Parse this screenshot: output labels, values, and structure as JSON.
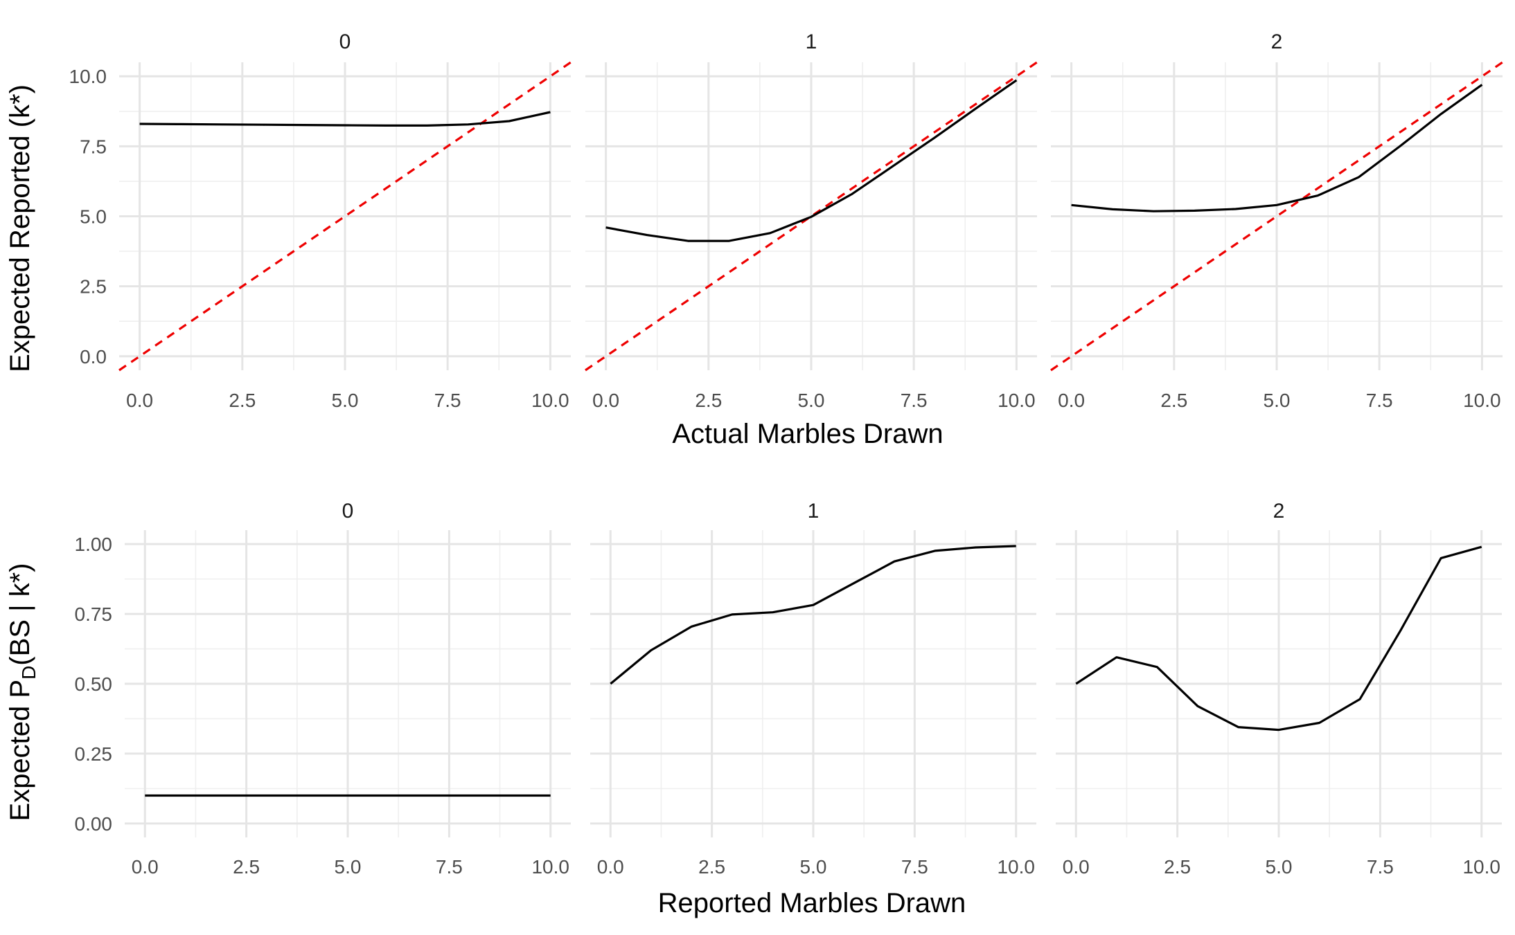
{
  "chart_data": [
    {
      "type": "line",
      "facet_labels": [
        "0",
        "1",
        "2"
      ],
      "xlabel": "Actual Marbles Drawn",
      "ylabel": "Expected Reported (k*)",
      "xlim": [
        -0.5,
        10.5
      ],
      "ylim": [
        -0.5,
        10.5
      ],
      "x_ticks": [
        0,
        2.5,
        5,
        7.5,
        10
      ],
      "x_tick_labels": [
        "0.0",
        "2.5",
        "5.0",
        "7.5",
        "10.0"
      ],
      "y_ticks": [
        0,
        2.5,
        5,
        7.5,
        10
      ],
      "y_tick_labels": [
        "0.0",
        "2.5",
        "5.0",
        "7.5",
        "10.0"
      ],
      "grid": true,
      "reference_line": {
        "slope": 1,
        "intercept": 0,
        "style": "dashed",
        "color": "#ee0000"
      },
      "x": [
        0,
        1,
        2,
        3,
        4,
        5,
        6,
        7,
        8,
        9,
        10
      ],
      "panels": [
        {
          "facet": "0",
          "values": [
            8.3,
            8.29,
            8.28,
            8.27,
            8.26,
            8.25,
            8.24,
            8.24,
            8.28,
            8.4,
            8.72
          ]
        },
        {
          "facet": "1",
          "values": [
            4.6,
            4.33,
            4.12,
            4.12,
            4.4,
            4.98,
            5.8,
            6.8,
            7.8,
            8.84,
            9.86
          ]
        },
        {
          "facet": "2",
          "values": [
            5.4,
            5.25,
            5.18,
            5.2,
            5.26,
            5.4,
            5.74,
            6.4,
            7.5,
            8.65,
            9.7
          ]
        }
      ]
    },
    {
      "type": "line",
      "facet_labels": [
        "0",
        "1",
        "2"
      ],
      "xlabel": "Reported Marbles Drawn",
      "ylabel_prefix": "Expected P",
      "ylabel_subscript": "D",
      "ylabel_suffix": "(BS | k*)",
      "xlim": [
        -0.5,
        10.5
      ],
      "ylim": [
        -0.05,
        1.05
      ],
      "x_ticks": [
        0,
        2.5,
        5,
        7.5,
        10
      ],
      "x_tick_labels": [
        "0.0",
        "2.5",
        "5.0",
        "7.5",
        "10.0"
      ],
      "y_ticks": [
        0,
        0.25,
        0.5,
        0.75,
        1
      ],
      "y_tick_labels": [
        "0.00",
        "0.25",
        "0.50",
        "0.75",
        "1.00"
      ],
      "grid": true,
      "x": [
        0,
        1,
        2,
        3,
        4,
        5,
        6,
        7,
        8,
        9,
        10
      ],
      "panels": [
        {
          "facet": "0",
          "values": [
            0.1,
            0.1,
            0.1,
            0.1,
            0.1,
            0.1,
            0.1,
            0.1,
            0.1,
            0.1,
            0.1
          ]
        },
        {
          "facet": "1",
          "values": [
            0.5,
            0.62,
            0.705,
            0.748,
            0.756,
            0.782,
            0.86,
            0.938,
            0.976,
            0.988,
            0.993
          ]
        },
        {
          "facet": "2",
          "values": [
            0.5,
            0.595,
            0.56,
            0.42,
            0.345,
            0.335,
            0.36,
            0.445,
            0.69,
            0.95,
            0.99
          ]
        }
      ]
    }
  ]
}
